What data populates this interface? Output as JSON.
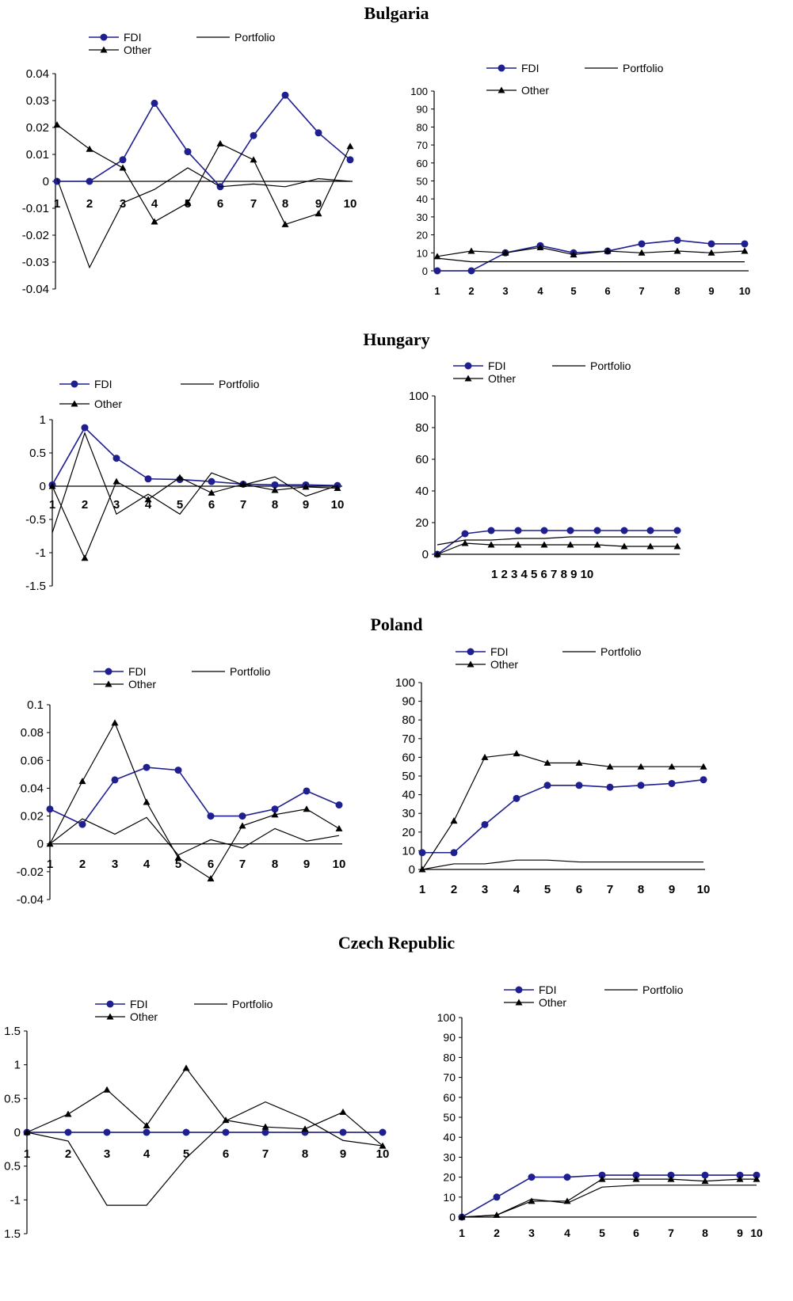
{
  "colors": {
    "fdi": "#1f1f8f",
    "portfolio": "#000000",
    "other": "#000000",
    "axis": "#000000"
  },
  "legend": {
    "fdi": "FDI",
    "portfolio": "Portfolio",
    "other": "Other"
  },
  "countries": [
    "Bulgaria",
    "Hungary",
    "Poland",
    "Czech Republic"
  ],
  "chart_data": [
    {
      "type": "line",
      "country": "Bulgaria",
      "panel": "left",
      "x": [
        1,
        2,
        3,
        4,
        5,
        6,
        7,
        8,
        9,
        10
      ],
      "ylim": [
        -0.04,
        0.04
      ],
      "yticks": [
        "0.04",
        "0.03",
        "0.02",
        "0.01",
        "0",
        "-0.01",
        "-0.02",
        "-0.03",
        "-0.04"
      ],
      "xticks": [
        "1",
        "2",
        "3",
        "4",
        "5",
        "6",
        "7",
        "8",
        "9",
        "10"
      ],
      "series": [
        {
          "name": "FDI",
          "values": [
            0,
            0,
            0.008,
            0.029,
            0.011,
            -0.002,
            0.017,
            0.032,
            0.018,
            0.008
          ]
        },
        {
          "name": "Portfolio",
          "values": [
            0.001,
            -0.032,
            -0.008,
            -0.003,
            0.005,
            -0.002,
            -0.001,
            -0.002,
            0.001,
            0
          ]
        },
        {
          "name": "Other",
          "values": [
            0.021,
            0.012,
            0.005,
            -0.015,
            -0.008,
            0.014,
            0.008,
            -0.016,
            -0.012,
            0.013
          ]
        }
      ]
    },
    {
      "type": "line",
      "country": "Bulgaria",
      "panel": "right",
      "x": [
        1,
        2,
        3,
        4,
        5,
        6,
        7,
        8,
        9,
        10
      ],
      "ylim": [
        0,
        100
      ],
      "yticks": [
        "100",
        "90",
        "80",
        "70",
        "60",
        "50",
        "40",
        "30",
        "20",
        "10",
        "0"
      ],
      "xticks": [
        "1",
        "2",
        "3",
        "4",
        "5",
        "6",
        "7",
        "8",
        "9",
        "10"
      ],
      "series": [
        {
          "name": "FDI",
          "values": [
            0,
            0,
            10,
            14,
            10,
            11,
            15,
            17,
            15,
            15
          ]
        },
        {
          "name": "Portfolio",
          "values": [
            7,
            5,
            5,
            5,
            5,
            5,
            5,
            5,
            5,
            5
          ]
        },
        {
          "name": "Other",
          "values": [
            8,
            11,
            10,
            13,
            9,
            11,
            10,
            11,
            10,
            11
          ]
        }
      ]
    },
    {
      "type": "line",
      "country": "Hungary",
      "panel": "left",
      "x": [
        1,
        2,
        3,
        4,
        5,
        6,
        7,
        8,
        9,
        10
      ],
      "ylim": [
        -1.5,
        1
      ],
      "yticks": [
        "1",
        "0.5",
        "0",
        "-0.5",
        "-1",
        "-1.5"
      ],
      "xticks": [
        "1",
        "2",
        "3",
        "4",
        "5",
        "6",
        "7",
        "8",
        "9",
        "10"
      ],
      "series": [
        {
          "name": "FDI",
          "values": [
            0.02,
            0.88,
            0.42,
            0.11,
            0.1,
            0.07,
            0.03,
            0.02,
            0.02,
            0.01
          ]
        },
        {
          "name": "Portfolio",
          "values": [
            -0.7,
            0.8,
            -0.42,
            -0.12,
            -0.42,
            0.2,
            0.02,
            0.14,
            -0.15,
            0.01
          ]
        },
        {
          "name": "Other",
          "values": [
            0,
            -1.08,
            0.07,
            -0.2,
            0.13,
            -0.1,
            0.03,
            -0.06,
            -0.01,
            -0.03
          ]
        }
      ]
    },
    {
      "type": "line",
      "country": "Hungary",
      "panel": "right",
      "x": [
        1,
        2,
        3,
        4,
        5,
        6,
        7,
        8,
        9,
        10
      ],
      "ylim": [
        0,
        100
      ],
      "yticks": [
        "100",
        "80",
        "60",
        "40",
        "20",
        "0"
      ],
      "xticks_text": "1 2 3 4 5 6 7 8 9  10",
      "series": [
        {
          "name": "FDI",
          "values": [
            0,
            13,
            15,
            15,
            15,
            15,
            15,
            15,
            15,
            15
          ]
        },
        {
          "name": "Portfolio",
          "values": [
            6,
            9,
            9,
            10,
            10,
            11,
            11,
            11,
            11,
            11
          ]
        },
        {
          "name": "Other",
          "values": [
            0,
            7,
            6,
            6,
            6,
            6,
            6,
            5,
            5,
            5
          ]
        }
      ]
    },
    {
      "type": "line",
      "country": "Poland",
      "panel": "left",
      "x": [
        1,
        2,
        3,
        4,
        5,
        6,
        7,
        8,
        9,
        10
      ],
      "ylim": [
        -0.04,
        0.1
      ],
      "yticks": [
        "0.1",
        "0.08",
        "0.06",
        "0.04",
        "0.02",
        "0",
        "-0.02",
        "-0.04"
      ],
      "xticks": [
        "1",
        "2",
        "3",
        "4",
        "5",
        "6",
        "7",
        "8",
        "9",
        "10"
      ],
      "series": [
        {
          "name": "FDI",
          "values": [
            0.025,
            0.014,
            0.046,
            0.055,
            0.053,
            0.02,
            0.02,
            0.025,
            0.038,
            0.028
          ]
        },
        {
          "name": "Portfolio",
          "values": [
            0,
            0.018,
            0.007,
            0.019,
            -0.008,
            0.003,
            -0.003,
            0.011,
            0.002,
            0.006
          ]
        },
        {
          "name": "Other",
          "values": [
            0,
            0.045,
            0.087,
            0.03,
            -0.01,
            -0.025,
            0.013,
            0.021,
            0.025,
            0.011
          ]
        }
      ]
    },
    {
      "type": "line",
      "country": "Poland",
      "panel": "right",
      "x": [
        1,
        2,
        3,
        4,
        5,
        6,
        7,
        8,
        9,
        10
      ],
      "ylim": [
        0,
        100
      ],
      "yticks": [
        "100",
        "90",
        "80",
        "70",
        "60",
        "50",
        "40",
        "30",
        "20",
        "10",
        "0"
      ],
      "xticks": [
        "1",
        "2",
        "3",
        "4",
        "5",
        "6",
        "7",
        "8",
        "9",
        "10"
      ],
      "series": [
        {
          "name": "FDI",
          "values": [
            9,
            9,
            24,
            38,
            45,
            45,
            44,
            45,
            46,
            48
          ]
        },
        {
          "name": "Portfolio",
          "values": [
            0,
            3,
            3,
            5,
            5,
            4,
            4,
            4,
            4,
            4
          ]
        },
        {
          "name": "Other",
          "values": [
            0,
            26,
            60,
            62,
            57,
            57,
            55,
            55,
            55,
            55
          ]
        }
      ]
    },
    {
      "type": "line",
      "country": "Czech Republic",
      "panel": "left",
      "x": [
        1,
        2,
        3,
        4,
        5,
        6,
        7,
        8,
        9,
        10
      ],
      "ylim": [
        -1.5,
        1.5
      ],
      "yticks": [
        "1.5",
        "1",
        "0.5",
        "0",
        "-0.5",
        "-1",
        "-1.5"
      ],
      "yticks_visible": [
        "1.5",
        "1",
        "0.5",
        "0",
        "0.5",
        "-1",
        "1.5"
      ],
      "xticks": [
        "1",
        "2",
        "3",
        "4",
        "5",
        "6",
        "7",
        "8",
        "9",
        "10"
      ],
      "series": [
        {
          "name": "FDI",
          "values": [
            0,
            0,
            0,
            0,
            0,
            0,
            0,
            0,
            0,
            0
          ]
        },
        {
          "name": "Portfolio",
          "values": [
            0,
            -0.13,
            -1.08,
            -1.08,
            -0.38,
            0.17,
            0.45,
            0.2,
            -0.12,
            -0.2
          ]
        },
        {
          "name": "Other",
          "values": [
            0,
            0.27,
            0.63,
            0.1,
            0.95,
            0.18,
            0.08,
            0.05,
            0.3,
            -0.2
          ]
        }
      ]
    },
    {
      "type": "line",
      "country": "Czech Republic",
      "panel": "right",
      "x": [
        1,
        2,
        3,
        4,
        5,
        6,
        7,
        8,
        9,
        10
      ],
      "ylim": [
        0,
        100
      ],
      "yticks": [
        "100",
        "90",
        "80",
        "70",
        "60",
        "50",
        "40",
        "30",
        "20",
        "10",
        "0"
      ],
      "xticks": [
        "1",
        "2",
        "3",
        "4",
        "5",
        "6",
        "7",
        "8",
        "9",
        "10"
      ],
      "series": [
        {
          "name": "FDI",
          "values": [
            0,
            10,
            20,
            20,
            21,
            21,
            21,
            21,
            21,
            21
          ]
        },
        {
          "name": "Portfolio",
          "values": [
            0,
            1,
            9,
            7,
            15,
            16,
            16,
            16,
            16,
            16
          ]
        },
        {
          "name": "Other",
          "values": [
            0,
            1,
            8,
            8,
            19,
            19,
            19,
            18,
            19,
            19
          ]
        }
      ]
    }
  ]
}
